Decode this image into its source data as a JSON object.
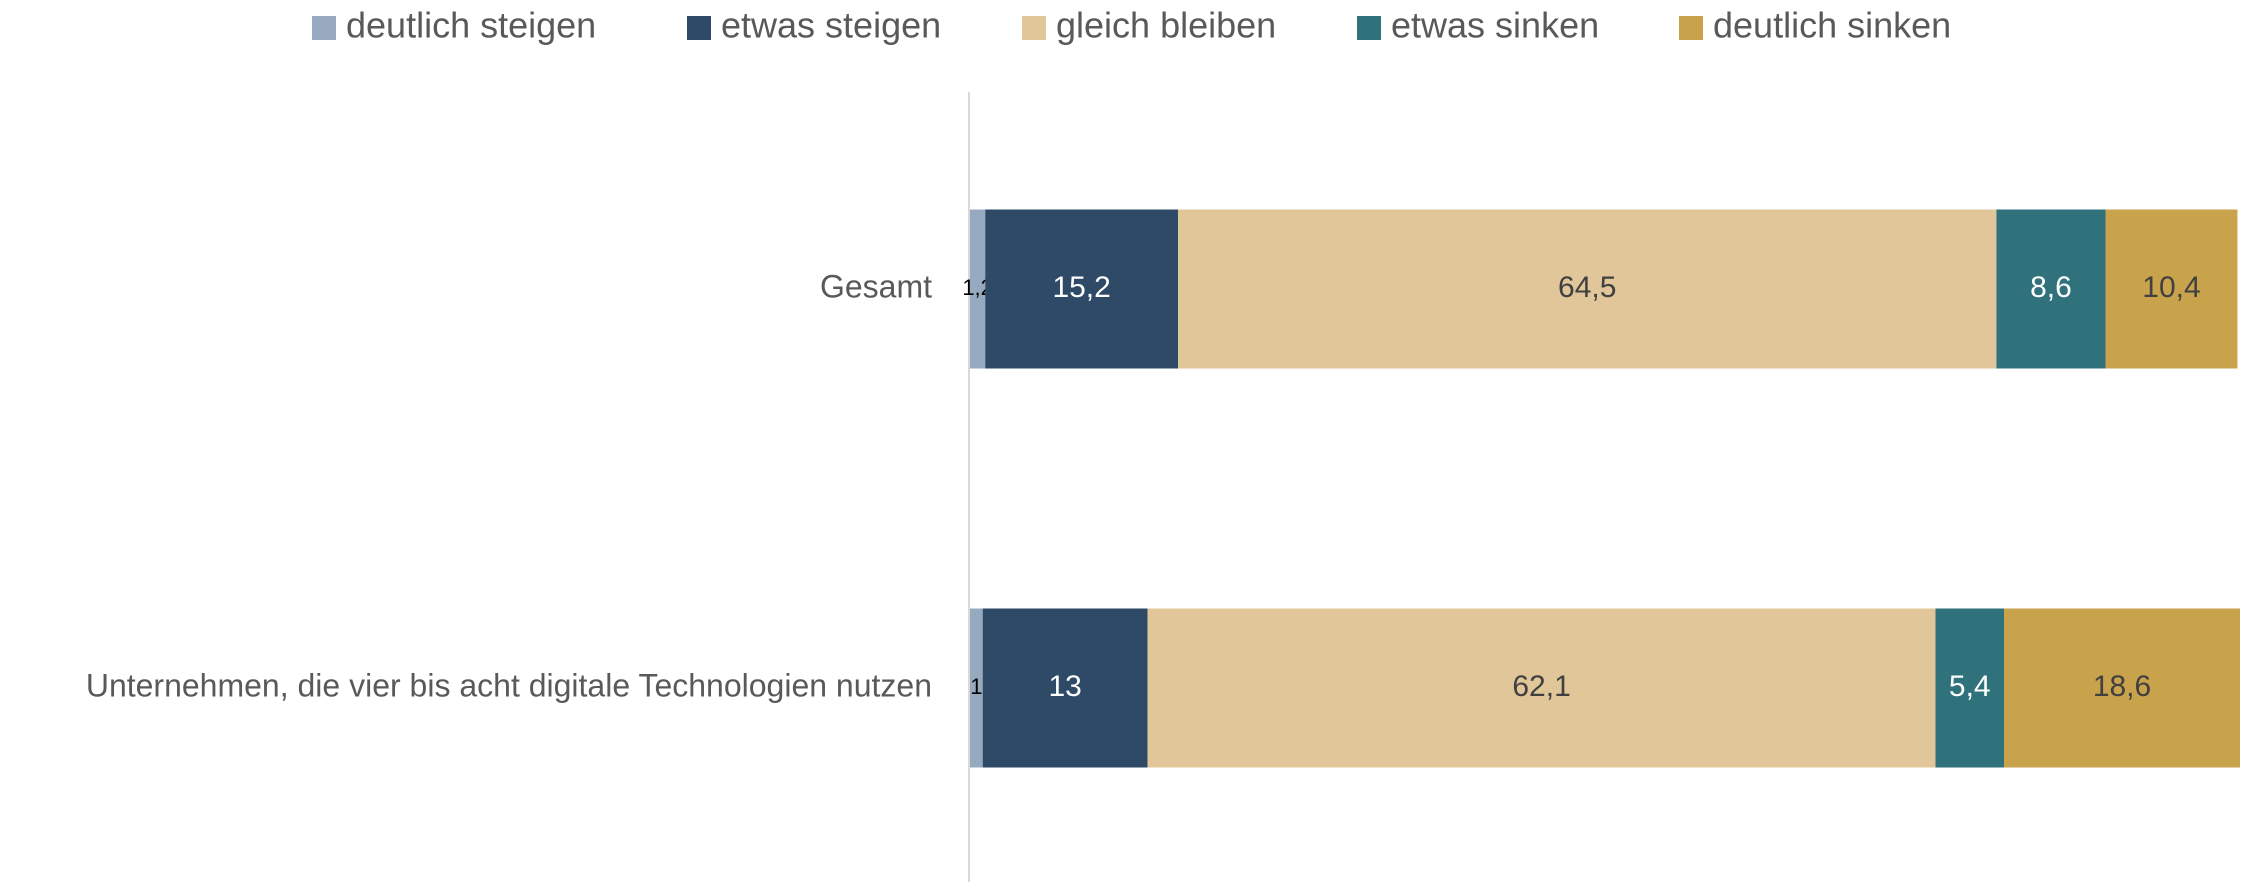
{
  "chart_data": {
    "type": "stacked_barh",
    "categories": [
      "Gesamt",
      "Unternehmen, die vier bis acht digitale Technologien nutzen"
    ],
    "series": [
      {
        "name": "deutlich steigen",
        "color": "#97a9bf",
        "values": [
          1.2,
          1
        ],
        "value_labels": [
          "1,2",
          "1"
        ]
      },
      {
        "name": "etwas steigen",
        "color": "#2e4a66",
        "values": [
          15.2,
          13
        ],
        "value_labels": [
          "15,2",
          "13"
        ]
      },
      {
        "name": "gleich bleiben",
        "color": "#e0c699",
        "values": [
          64.5,
          62.1
        ],
        "value_labels": [
          "64,5",
          "62,1"
        ]
      },
      {
        "name": "etwas sinken",
        "color": "#2f727c",
        "values": [
          8.6,
          5.4
        ],
        "value_labels": [
          "8,6",
          "5,4"
        ]
      },
      {
        "name": "deutlich sinken",
        "color": "#c9a24c",
        "values": [
          10.4,
          18.6
        ],
        "value_labels": [
          "10,4",
          "18,6"
        ]
      }
    ],
    "legend": "top"
  }
}
